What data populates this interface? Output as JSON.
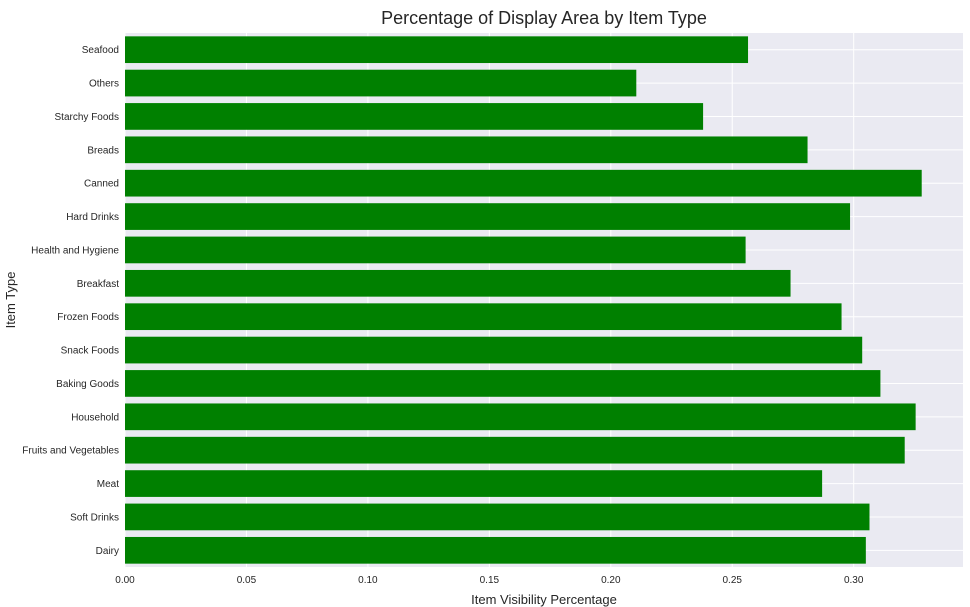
{
  "chart_data": {
    "type": "bar",
    "orientation": "horizontal",
    "title": "Percentage of Display Area by Item Type",
    "xlabel": "Item Visibility Percentage",
    "ylabel": "Item Type",
    "xlim": [
      0,
      0.345
    ],
    "xticks": [
      "0.00",
      "0.05",
      "0.10",
      "0.15",
      "0.20",
      "0.25",
      "0.30"
    ],
    "xtick_values": [
      0,
      0.05,
      0.1,
      0.15,
      0.2,
      0.25,
      0.3
    ],
    "grid": true,
    "background": "#EAEAF2",
    "bar_color": "#008000",
    "categories": [
      "Dairy",
      "Soft Drinks",
      "Meat",
      "Fruits and Vegetables",
      "Household",
      "Baking Goods",
      "Snack Foods",
      "Frozen Foods",
      "Breakfast",
      "Health and Hygiene",
      "Hard Drinks",
      "Canned",
      "Breads",
      "Starchy Foods",
      "Others",
      "Seafood"
    ],
    "values": [
      0.305,
      0.3065,
      0.287,
      0.321,
      0.3255,
      0.311,
      0.3035,
      0.295,
      0.274,
      0.2555,
      0.2985,
      0.328,
      0.281,
      0.238,
      0.2105,
      0.2565
    ]
  }
}
